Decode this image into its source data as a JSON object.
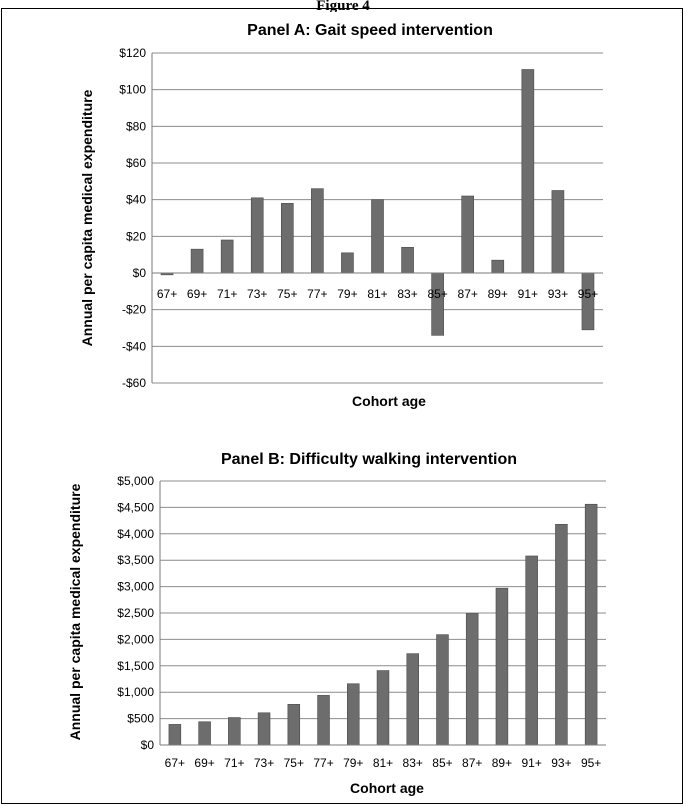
{
  "figure": {
    "header": "Figure 4"
  },
  "colors": {
    "bar": "#6d6d6d",
    "bar_edge": "#4a4a4a",
    "grid": "#8c8c8c",
    "axis": "#7a7a7a"
  },
  "chart_data": [
    {
      "type": "bar",
      "title": "Panel A: Gait speed intervention",
      "xlabel": "Cohort age",
      "ylabel": "Annual per capita medical expenditure",
      "categories": [
        "67+",
        "69+",
        "71+",
        "73+",
        "75+",
        "77+",
        "79+",
        "81+",
        "83+",
        "85+",
        "87+",
        "89+",
        "91+",
        "93+",
        "95+"
      ],
      "values": [
        -1,
        13,
        18,
        41,
        38,
        46,
        11,
        40,
        14,
        -34,
        42,
        7,
        111,
        45,
        -31
      ],
      "ylim": [
        -60,
        120
      ],
      "yticks": [
        -60,
        -40,
        -20,
        0,
        20,
        40,
        60,
        80,
        100,
        120
      ],
      "yticklabels": [
        "-$60",
        "-$40",
        "-$20",
        "$0",
        "$20",
        "$40",
        "$60",
        "$80",
        "$100",
        "$120"
      ],
      "grid": true
    },
    {
      "type": "bar",
      "title": "Panel B: Difficulty walking intervention",
      "xlabel": "Cohort age",
      "ylabel": "Annual per capita medical expenditure",
      "categories": [
        "67+",
        "69+",
        "71+",
        "73+",
        "75+",
        "77+",
        "79+",
        "81+",
        "83+",
        "85+",
        "87+",
        "89+",
        "91+",
        "93+",
        "95+"
      ],
      "values": [
        390,
        440,
        520,
        610,
        770,
        940,
        1160,
        1410,
        1730,
        2090,
        2490,
        2970,
        3580,
        4180,
        4560
      ],
      "ylim": [
        0,
        5000
      ],
      "yticks": [
        0,
        500,
        1000,
        1500,
        2000,
        2500,
        3000,
        3500,
        4000,
        4500,
        5000
      ],
      "yticklabels": [
        "$0",
        "$500",
        "$1,000",
        "$1,500",
        "$2,000",
        "$2,500",
        "$3,000",
        "$3,500",
        "$4,000",
        "$4,500",
        "$5,000"
      ],
      "grid": true
    }
  ]
}
